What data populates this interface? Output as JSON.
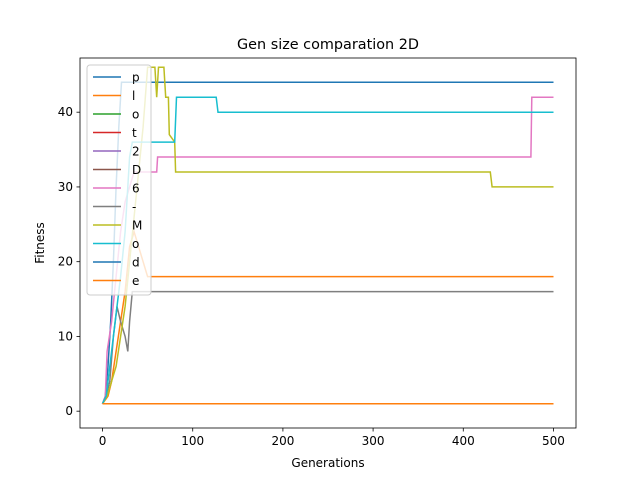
{
  "chart_data": {
    "type": "line",
    "title": "Gen size comparation 2D",
    "xlabel": "Generations",
    "ylabel": "Fitness",
    "xlim": [
      -25,
      525
    ],
    "ylim": [
      -2.25,
      47.25
    ],
    "xticks": [
      0,
      100,
      200,
      300,
      400,
      500
    ],
    "yticks": [
      0,
      10,
      20,
      30,
      40
    ],
    "grid": false,
    "legend_position": "upper-left",
    "series": [
      {
        "name": "p",
        "color": "#1f77b4",
        "points": [
          [
            0,
            1
          ],
          [
            3,
            2
          ],
          [
            6,
            6
          ],
          [
            9,
            12
          ],
          [
            12,
            20
          ],
          [
            15,
            30
          ],
          [
            18,
            38
          ],
          [
            21,
            44
          ],
          [
            500,
            44
          ]
        ]
      },
      {
        "name": "l",
        "color": "#ff7f0e",
        "points": [
          [
            0,
            1
          ],
          [
            6,
            2
          ],
          [
            10,
            4
          ],
          [
            15,
            8
          ],
          [
            20,
            12
          ],
          [
            25,
            16
          ],
          [
            30,
            22
          ],
          [
            35,
            24
          ],
          [
            40,
            22
          ],
          [
            45,
            20
          ],
          [
            50,
            18
          ],
          [
            500,
            18
          ]
        ]
      },
      {
        "name": "o",
        "color": "#2ca02c",
        "points": [
          [
            0,
            1
          ],
          [
            500,
            1
          ]
        ]
      },
      {
        "name": "t",
        "color": "#d62728",
        "points": [
          [
            0,
            1
          ],
          [
            500,
            1
          ]
        ]
      },
      {
        "name": "2",
        "color": "#9467bd",
        "points": [
          [
            0,
            1
          ],
          [
            500,
            1
          ]
        ]
      },
      {
        "name": "D",
        "color": "#8c564b",
        "points": [
          [
            0,
            1
          ],
          [
            500,
            1
          ]
        ]
      },
      {
        "name": "6",
        "color": "#e377c2",
        "points": [
          [
            0,
            1
          ],
          [
            3,
            2
          ],
          [
            5,
            8
          ],
          [
            10,
            12
          ],
          [
            15,
            18
          ],
          [
            20,
            24
          ],
          [
            25,
            28
          ],
          [
            30,
            30
          ],
          [
            35,
            32
          ],
          [
            60,
            32
          ],
          [
            61,
            34
          ],
          [
            475,
            34
          ],
          [
            476,
            42
          ],
          [
            500,
            42
          ]
        ]
      },
      {
        "name": "-",
        "color": "#7f7f7f",
        "points": [
          [
            0,
            1
          ],
          [
            4,
            2
          ],
          [
            8,
            4
          ],
          [
            12,
            10
          ],
          [
            16,
            14
          ],
          [
            20,
            12
          ],
          [
            25,
            10
          ],
          [
            28,
            8
          ],
          [
            30,
            12
          ],
          [
            33,
            16
          ],
          [
            500,
            16
          ]
        ]
      },
      {
        "name": "M",
        "color": "#bcbd22",
        "points": [
          [
            0,
            1
          ],
          [
            5,
            2
          ],
          [
            10,
            4
          ],
          [
            15,
            6
          ],
          [
            20,
            10
          ],
          [
            25,
            14
          ],
          [
            30,
            20
          ],
          [
            35,
            26
          ],
          [
            40,
            32
          ],
          [
            45,
            38
          ],
          [
            50,
            46
          ],
          [
            58,
            46
          ],
          [
            60,
            42
          ],
          [
            62,
            46
          ],
          [
            68,
            46
          ],
          [
            70,
            42
          ],
          [
            73,
            42
          ],
          [
            74,
            37
          ],
          [
            80,
            36
          ],
          [
            81,
            32
          ],
          [
            430,
            32
          ],
          [
            432,
            30
          ],
          [
            500,
            30
          ]
        ]
      },
      {
        "name": "o",
        "color": "#17becf",
        "points": [
          [
            0,
            1
          ],
          [
            4,
            2
          ],
          [
            8,
            6
          ],
          [
            12,
            10
          ],
          [
            16,
            14
          ],
          [
            20,
            18
          ],
          [
            25,
            24
          ],
          [
            28,
            30
          ],
          [
            30,
            34
          ],
          [
            33,
            36
          ],
          [
            80,
            36
          ],
          [
            82,
            42
          ],
          [
            126,
            42
          ],
          [
            128,
            40
          ],
          [
            500,
            40
          ]
        ]
      },
      {
        "name": "d",
        "color": "#1f77b4",
        "points": [
          [
            0,
            1
          ],
          [
            500,
            1
          ]
        ]
      },
      {
        "name": "e",
        "color": "#ff7f0e",
        "points": [
          [
            0,
            1
          ],
          [
            500,
            1
          ]
        ]
      }
    ]
  }
}
